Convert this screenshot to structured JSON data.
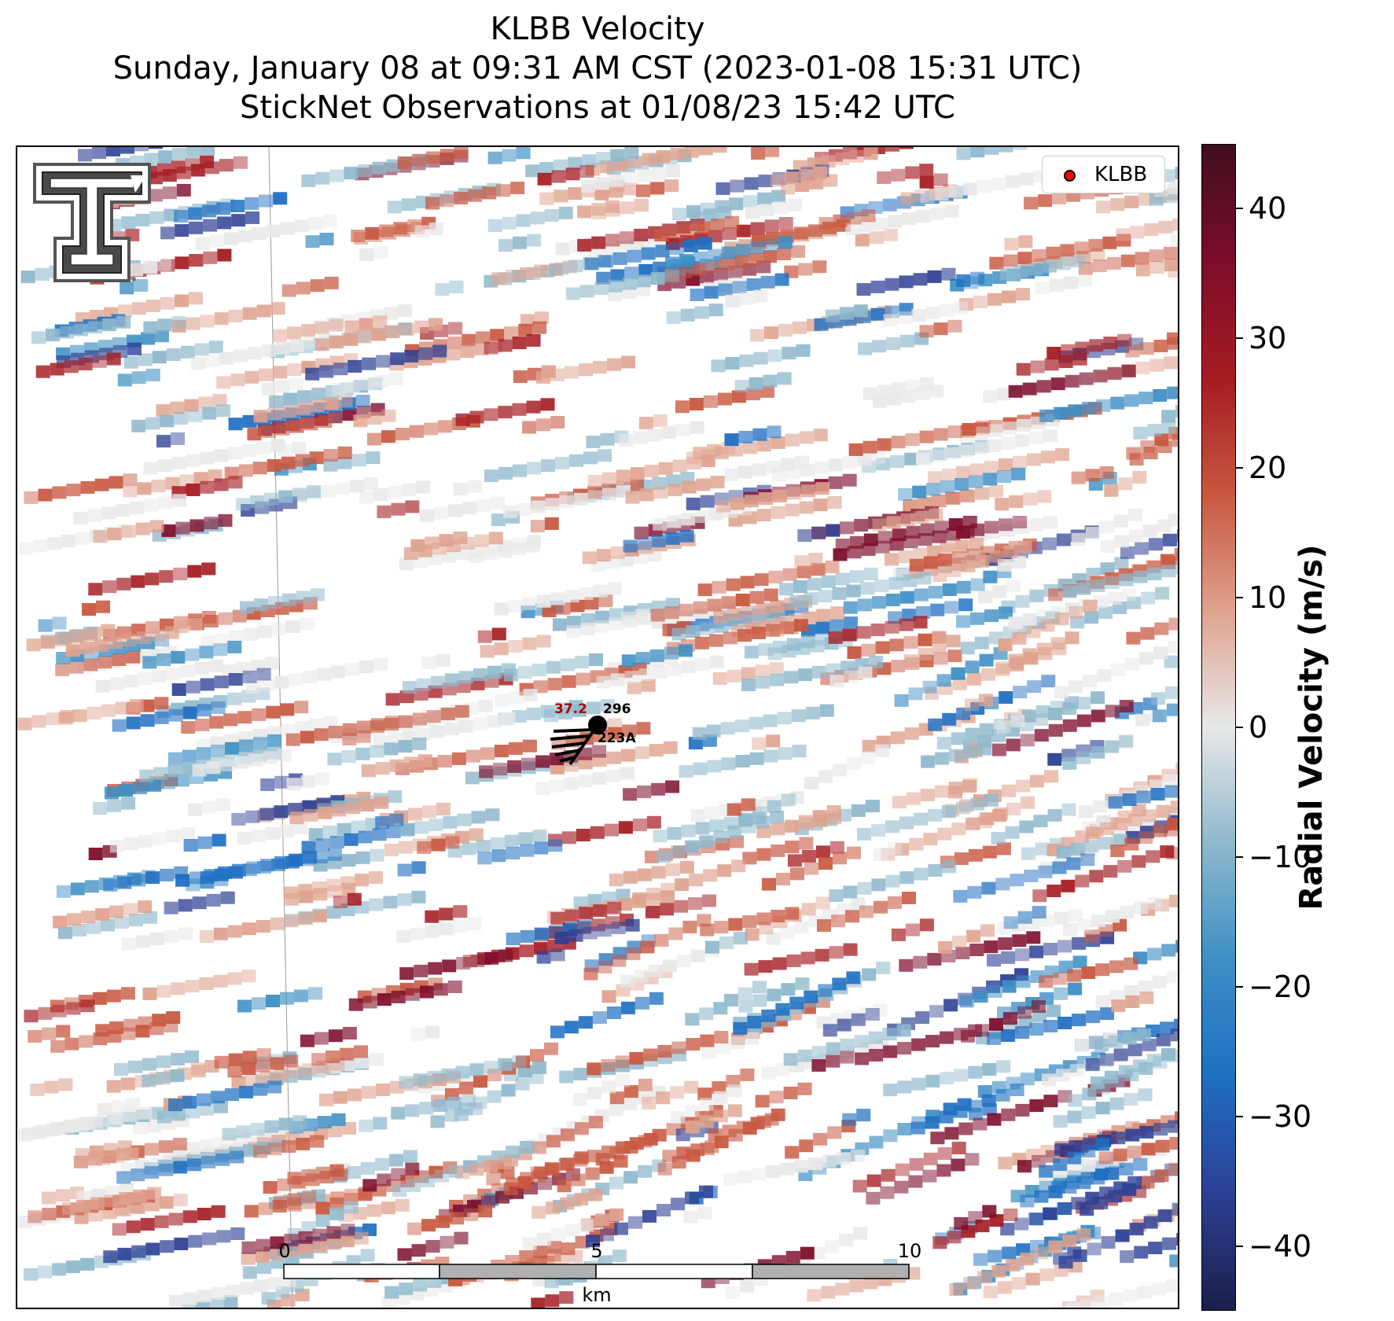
{
  "title": {
    "line1": "KLBB Velocity",
    "line2": "Sunday, January 08 at 09:31 AM CST (2023-01-08 15:31 UTC)",
    "line3": "StickNet Observations at 01/08/23 15:42 UTC"
  },
  "legend": {
    "label": "KLBB",
    "marker_color": "#ff0000"
  },
  "colorbar": {
    "label": "Radial Velocity (m/s)",
    "range": [
      -45,
      45
    ],
    "ticks": [
      "40",
      "30",
      "20",
      "10",
      "0",
      "−10",
      "−20",
      "−30",
      "−40"
    ],
    "colors": [
      "#1a1f4a",
      "#2c3f94",
      "#1f6fc2",
      "#3d8ec4",
      "#8eb8cc",
      "#e8e8e8",
      "#dfa28e",
      "#c8573f",
      "#a51c22",
      "#7d0c2a",
      "#3f0f1e"
    ]
  },
  "scale_bar": {
    "labels": [
      "0",
      "5",
      "10"
    ],
    "unit": "km"
  },
  "station": {
    "temperature": "37.2",
    "pressure": "296",
    "id": "223A",
    "temp_color": "#b00000"
  },
  "logo": {
    "icon": "double-t-logo"
  }
}
